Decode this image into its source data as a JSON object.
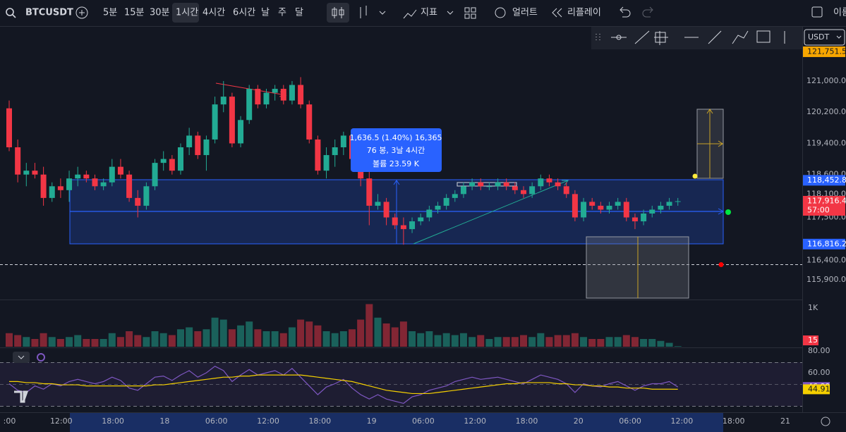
{
  "toolbar": {
    "symbol": "BTCUSDT",
    "intervals": [
      "5분",
      "15분",
      "30분",
      "1시간",
      "4시간",
      "6시간",
      "날",
      "주",
      "달"
    ],
    "selected_interval": "1시간",
    "indicators": "지표",
    "alert": "얼러트",
    "replay": "리플레이",
    "name": "이름"
  },
  "drawing_toolbar": {
    "currency": "USDT"
  },
  "chart_data": {
    "type": "candlestick",
    "symbol": "BTCUSDT",
    "candles": [
      [
        120300,
        120500,
        119200,
        119300
      ],
      [
        119300,
        119500,
        118400,
        118600
      ],
      [
        118600,
        118900,
        118300,
        118700
      ],
      [
        118700,
        118900,
        118500,
        118600
      ],
      [
        118600,
        118800,
        117800,
        118000
      ],
      [
        118000,
        118400,
        117900,
        118300
      ],
      [
        118300,
        118500,
        118000,
        118200
      ],
      [
        118200,
        118700,
        117900,
        118500
      ],
      [
        118500,
        118800,
        118300,
        118600
      ],
      [
        118600,
        118700,
        118400,
        118500
      ],
      [
        118500,
        118600,
        118200,
        118300
      ],
      [
        118300,
        118500,
        118200,
        118400
      ],
      [
        118400,
        119000,
        118300,
        118800
      ],
      [
        118800,
        119000,
        118500,
        118600
      ],
      [
        118600,
        118700,
        117900,
        118000
      ],
      [
        118000,
        118200,
        117500,
        117800
      ],
      [
        117800,
        118400,
        117700,
        118300
      ],
      [
        118300,
        119000,
        118200,
        118900
      ],
      [
        118900,
        119200,
        118700,
        119000
      ],
      [
        119000,
        119100,
        118600,
        118700
      ],
      [
        118700,
        119400,
        118600,
        119300
      ],
      [
        119300,
        119800,
        119100,
        119600
      ],
      [
        119600,
        119700,
        119000,
        119100
      ],
      [
        119100,
        119600,
        118700,
        119500
      ],
      [
        119500,
        120600,
        119400,
        120400
      ],
      [
        120400,
        121000,
        120200,
        120600
      ],
      [
        120600,
        120700,
        119300,
        119400
      ],
      [
        119400,
        120100,
        119300,
        120000
      ],
      [
        120000,
        120900,
        119900,
        120800
      ],
      [
        120800,
        120900,
        120300,
        120400
      ],
      [
        120400,
        120800,
        120300,
        120700
      ],
      [
        120700,
        120900,
        120500,
        120800
      ],
      [
        120800,
        120900,
        120400,
        120500
      ],
      [
        120500,
        121000,
        120400,
        120900
      ],
      [
        120900,
        121100,
        120300,
        120400
      ],
      [
        120400,
        120500,
        119400,
        119500
      ],
      [
        119500,
        119600,
        118600,
        118700
      ],
      [
        118700,
        119300,
        118500,
        119100
      ],
      [
        119100,
        119500,
        118800,
        119300
      ],
      [
        119300,
        119700,
        119100,
        119600
      ],
      [
        119600,
        119700,
        118900,
        119000
      ],
      [
        119000,
        119100,
        118300,
        118500
      ],
      [
        118500,
        118700,
        117300,
        117800
      ],
      [
        117800,
        118100,
        117700,
        117900
      ],
      [
        117900,
        118000,
        117300,
        117500
      ],
      [
        117500,
        117600,
        117200,
        117300
      ],
      [
        117300,
        117500,
        116800,
        117200
      ],
      [
        117200,
        117500,
        117100,
        117400
      ],
      [
        117400,
        117600,
        117300,
        117500
      ],
      [
        117500,
        117800,
        117400,
        117700
      ],
      [
        117700,
        117900,
        117600,
        117800
      ],
      [
        117800,
        118100,
        117700,
        118000
      ],
      [
        118000,
        118200,
        117900,
        118100
      ],
      [
        118100,
        118400,
        118000,
        118300
      ],
      [
        118300,
        118500,
        118200,
        118400
      ],
      [
        118400,
        118500,
        118200,
        118300
      ],
      [
        118300,
        118400,
        118200,
        118300
      ],
      [
        118300,
        118500,
        118200,
        118400
      ],
      [
        118400,
        118500,
        118200,
        118300
      ],
      [
        118300,
        118400,
        118100,
        118200
      ],
      [
        118200,
        118300,
        118000,
        118100
      ],
      [
        118100,
        118400,
        118000,
        118300
      ],
      [
        118300,
        118600,
        118200,
        118500
      ],
      [
        118500,
        118600,
        118300,
        118400
      ],
      [
        118400,
        118500,
        118200,
        118300
      ],
      [
        118300,
        118400,
        118000,
        118100
      ],
      [
        118100,
        118200,
        117400,
        117500
      ],
      [
        117500,
        118000,
        117400,
        117900
      ],
      [
        117900,
        118000,
        117700,
        117800
      ],
      [
        117800,
        117900,
        117600,
        117700
      ],
      [
        117700,
        117900,
        117600,
        117800
      ],
      [
        117800,
        118000,
        117700,
        117900
      ],
      [
        117900,
        118000,
        117400,
        117500
      ],
      [
        117500,
        117600,
        117200,
        117400
      ],
      [
        117400,
        117700,
        117300,
        117600
      ],
      [
        117600,
        117800,
        117500,
        117700
      ],
      [
        117700,
        117900,
        117600,
        117800
      ],
      [
        117800,
        118000,
        117700,
        117900
      ],
      [
        117900,
        118000,
        117800,
        117916.4
      ]
    ],
    "volumes": [
      350,
      300,
      250,
      200,
      350,
      250,
      200,
      250,
      300,
      200,
      200,
      200,
      350,
      250,
      400,
      300,
      250,
      400,
      350,
      300,
      450,
      500,
      400,
      450,
      750,
      700,
      450,
      550,
      650,
      450,
      400,
      400,
      350,
      500,
      700,
      650,
      550,
      400,
      350,
      400,
      450,
      700,
      1100,
      750,
      600,
      500,
      650,
      400,
      350,
      400,
      300,
      350,
      300,
      350,
      250,
      300,
      200,
      250,
      250,
      250,
      300,
      250,
      350,
      250,
      300,
      300,
      350,
      250,
      200,
      200,
      250,
      250,
      300,
      250,
      200,
      200,
      150,
      100,
      15
    ],
    "rsi": [
      50,
      44,
      42,
      48,
      45,
      50,
      48,
      52,
      54,
      52,
      50,
      52,
      56,
      53,
      46,
      44,
      50,
      56,
      57,
      53,
      58,
      62,
      56,
      60,
      66,
      62,
      52,
      58,
      63,
      58,
      60,
      62,
      58,
      64,
      56,
      48,
      40,
      47,
      50,
      54,
      46,
      40,
      36,
      40,
      36,
      34,
      32,
      38,
      40,
      44,
      46,
      48,
      52,
      54,
      56,
      54,
      55,
      56,
      54,
      52,
      50,
      54,
      58,
      56,
      54,
      50,
      42,
      50,
      48,
      47,
      50,
      52,
      48,
      44,
      48,
      50,
      50,
      52,
      46.99
    ],
    "rsi_ma": [
      52,
      52,
      51,
      51,
      50,
      50,
      49,
      49,
      49,
      48,
      48,
      48,
      48,
      48,
      48,
      48,
      48,
      49,
      49,
      50,
      51,
      52,
      53,
      54,
      55,
      56,
      56,
      57,
      57,
      58,
      58,
      58,
      58,
      58,
      58,
      57,
      56,
      55,
      54,
      53,
      52,
      50,
      48,
      46,
      44,
      43,
      42,
      41,
      41,
      41,
      42,
      43,
      44,
      45,
      46,
      47,
      48,
      49,
      50,
      50,
      51,
      51,
      51,
      51,
      50,
      50,
      49,
      49,
      48,
      48,
      47,
      47,
      46,
      46,
      46,
      45,
      45,
      45,
      44.91
    ],
    "price_ticks": [
      {
        "value": 121000,
        "label": "121,000.0"
      },
      {
        "value": 120200,
        "label": "120,200.0"
      },
      {
        "value": 119400,
        "label": "119,400.0"
      },
      {
        "value": 118600,
        "label": "118,600.0"
      },
      {
        "value": 118100,
        "label": "118,100.0"
      },
      {
        "value": 117500,
        "label": "117,500.0"
      },
      {
        "value": 116400,
        "label": "116,400.0"
      },
      {
        "value": 115900,
        "label": "115,900.0"
      }
    ],
    "price_labels": [
      {
        "value": 121751.5,
        "label": "121,751.5",
        "color": "#f7a600"
      },
      {
        "value": 118452.8,
        "label": "118,452.8",
        "color": "#2962ff"
      },
      {
        "value": 117916.4,
        "label": "117,916.4",
        "color": "#f23645"
      },
      {
        "value": 116816.2,
        "label": "116,816.2",
        "color": "#2962ff"
      }
    ],
    "countdown": "57:00",
    "volume_ticks": [
      {
        "value": 1000,
        "label": "1K"
      }
    ],
    "rsi_ticks": [
      {
        "value": 80,
        "label": "80.00"
      },
      {
        "value": 60,
        "label": "60.00"
      }
    ],
    "time_labels": [
      ":00",
      "12:00",
      "18:00",
      "18",
      "06:00",
      "12:00",
      "18:00",
      "19",
      "06:00",
      "12:00",
      "18:00",
      "20",
      "06:00",
      "12:00",
      "18:00",
      "21"
    ],
    "tooltip": [
      "1,636.5 (1.40%) 16,365",
      "76 봉, 3날 4시간",
      "볼륨 23.59 K"
    ],
    "up_color": "#22ab94",
    "down_color": "#f23645"
  }
}
